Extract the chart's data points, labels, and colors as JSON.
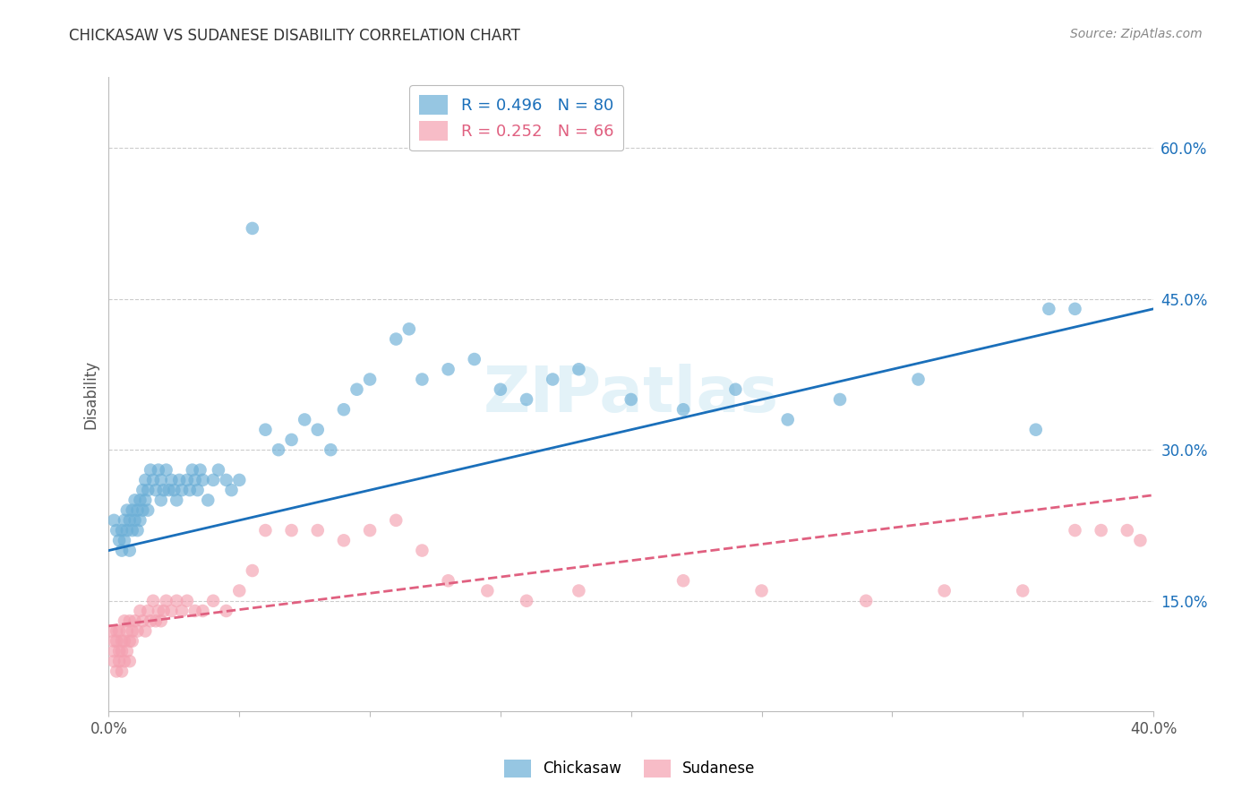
{
  "title": "CHICKASAW VS SUDANESE DISABILITY CORRELATION CHART",
  "source": "Source: ZipAtlas.com",
  "ylabel": "Disability",
  "yticks": [
    0.15,
    0.3,
    0.45,
    0.6
  ],
  "ytick_labels": [
    "15.0%",
    "30.0%",
    "45.0%",
    "60.0%"
  ],
  "xlim": [
    0.0,
    0.4
  ],
  "ylim": [
    0.04,
    0.67
  ],
  "chickasaw_R": 0.496,
  "chickasaw_N": 80,
  "sudanese_R": 0.252,
  "sudanese_N": 66,
  "chickasaw_color": "#6aaed6",
  "sudanese_color": "#f4a0b0",
  "trend_blue": "#1a6fba",
  "trend_pink": "#e06080",
  "watermark": "ZIPatlas",
  "chickasaw_x": [
    0.002,
    0.003,
    0.004,
    0.005,
    0.005,
    0.006,
    0.006,
    0.007,
    0.007,
    0.008,
    0.008,
    0.009,
    0.009,
    0.01,
    0.01,
    0.011,
    0.011,
    0.012,
    0.012,
    0.013,
    0.013,
    0.014,
    0.014,
    0.015,
    0.015,
    0.016,
    0.017,
    0.018,
    0.019,
    0.02,
    0.02,
    0.021,
    0.022,
    0.023,
    0.024,
    0.025,
    0.026,
    0.027,
    0.028,
    0.03,
    0.031,
    0.032,
    0.033,
    0.034,
    0.035,
    0.036,
    0.038,
    0.04,
    0.042,
    0.045,
    0.047,
    0.05,
    0.055,
    0.06,
    0.065,
    0.07,
    0.075,
    0.08,
    0.085,
    0.09,
    0.095,
    0.1,
    0.11,
    0.115,
    0.12,
    0.13,
    0.14,
    0.15,
    0.16,
    0.17,
    0.18,
    0.2,
    0.22,
    0.24,
    0.26,
    0.28,
    0.31,
    0.355,
    0.36,
    0.37
  ],
  "chickasaw_y": [
    0.23,
    0.22,
    0.21,
    0.22,
    0.2,
    0.23,
    0.21,
    0.22,
    0.24,
    0.2,
    0.23,
    0.22,
    0.24,
    0.23,
    0.25,
    0.24,
    0.22,
    0.25,
    0.23,
    0.24,
    0.26,
    0.25,
    0.27,
    0.24,
    0.26,
    0.28,
    0.27,
    0.26,
    0.28,
    0.25,
    0.27,
    0.26,
    0.28,
    0.26,
    0.27,
    0.26,
    0.25,
    0.27,
    0.26,
    0.27,
    0.26,
    0.28,
    0.27,
    0.26,
    0.28,
    0.27,
    0.25,
    0.27,
    0.28,
    0.27,
    0.26,
    0.27,
    0.52,
    0.32,
    0.3,
    0.31,
    0.33,
    0.32,
    0.3,
    0.34,
    0.36,
    0.37,
    0.41,
    0.42,
    0.37,
    0.38,
    0.39,
    0.36,
    0.35,
    0.37,
    0.38,
    0.35,
    0.34,
    0.36,
    0.33,
    0.35,
    0.37,
    0.32,
    0.44,
    0.44
  ],
  "sudanese_x": [
    0.001,
    0.002,
    0.002,
    0.003,
    0.003,
    0.004,
    0.004,
    0.005,
    0.005,
    0.006,
    0.006,
    0.007,
    0.007,
    0.008,
    0.008,
    0.009,
    0.009,
    0.01,
    0.011,
    0.012,
    0.013,
    0.014,
    0.015,
    0.016,
    0.017,
    0.018,
    0.019,
    0.02,
    0.021,
    0.022,
    0.024,
    0.026,
    0.028,
    0.03,
    0.033,
    0.036,
    0.04,
    0.045,
    0.05,
    0.055,
    0.06,
    0.07,
    0.08,
    0.09,
    0.1,
    0.11,
    0.12,
    0.13,
    0.145,
    0.16,
    0.18,
    0.22,
    0.25,
    0.29,
    0.32,
    0.35,
    0.37,
    0.38,
    0.39,
    0.395,
    0.002,
    0.003,
    0.004,
    0.005,
    0.006,
    0.008
  ],
  "sudanese_y": [
    0.12,
    0.11,
    0.1,
    0.12,
    0.11,
    0.1,
    0.12,
    0.11,
    0.1,
    0.13,
    0.11,
    0.12,
    0.1,
    0.11,
    0.13,
    0.12,
    0.11,
    0.13,
    0.12,
    0.14,
    0.13,
    0.12,
    0.14,
    0.13,
    0.15,
    0.13,
    0.14,
    0.13,
    0.14,
    0.15,
    0.14,
    0.15,
    0.14,
    0.15,
    0.14,
    0.14,
    0.15,
    0.14,
    0.16,
    0.18,
    0.22,
    0.22,
    0.22,
    0.21,
    0.22,
    0.23,
    0.2,
    0.17,
    0.16,
    0.15,
    0.16,
    0.17,
    0.16,
    0.15,
    0.16,
    0.16,
    0.22,
    0.22,
    0.22,
    0.21,
    0.09,
    0.08,
    0.09,
    0.08,
    0.09,
    0.09
  ],
  "chickasaw_trend_x": [
    0.0,
    0.4
  ],
  "chickasaw_trend_y": [
    0.2,
    0.44
  ],
  "sudanese_trend_x": [
    0.0,
    0.4
  ],
  "sudanese_trend_y": [
    0.125,
    0.255
  ]
}
